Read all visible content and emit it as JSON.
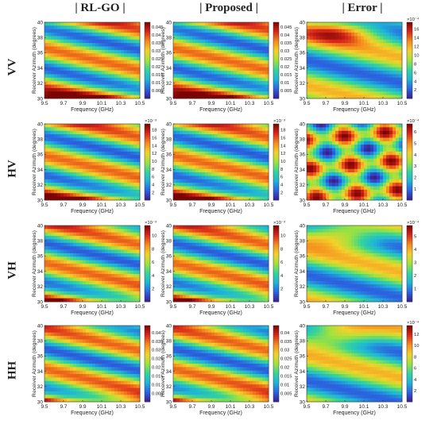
{
  "columns": [
    "| RL-GO |",
    "| Proposed |",
    "| Error |"
  ],
  "rows": [
    "VV",
    "HV",
    "VH",
    "HH"
  ],
  "chart_data": {
    "type": "heatmap",
    "xlabel": "Frequency (GHz)",
    "ylabel": "Receiver Azimuth (degrees)",
    "xticks": [
      "9.5",
      "9.7",
      "9.9",
      "10.1",
      "10.3",
      "10.5"
    ],
    "xlim": [
      9.5,
      10.5
    ],
    "yticks": [
      "30",
      "32",
      "34",
      "36",
      "38",
      "40"
    ],
    "ylim": [
      30,
      40
    ],
    "colormap": [
      "#3b1d8f",
      "#2b63e0",
      "#1fb5d8",
      "#35d49a",
      "#a2e23c",
      "#f3d12c",
      "#f58a1c",
      "#d8261b",
      "#7a0403"
    ],
    "panels": [
      {
        "row": "VV",
        "col": "| RL-GO |",
        "exp": "",
        "cb_ticks": [
          "0.045",
          "0.04",
          "0.035",
          "0.03",
          "0.025",
          "0.02",
          "0.015",
          "0.01",
          "0.005"
        ],
        "cmin": 0,
        "cmax": 0.048
      },
      {
        "row": "VV",
        "col": "| Proposed |",
        "exp": "",
        "cb_ticks": [
          "0.045",
          "0.04",
          "0.035",
          "0.03",
          "0.025",
          "0.02",
          "0.015",
          "0.01",
          "0.005"
        ],
        "cmin": 0,
        "cmax": 0.048
      },
      {
        "row": "VV",
        "col": "| Error |",
        "exp": "×10⁻⁴",
        "cb_ticks": [
          "16",
          "14",
          "12",
          "10",
          "8",
          "6",
          "4",
          "2"
        ],
        "cmin": 0,
        "cmax": 17.5
      },
      {
        "row": "HV",
        "col": "| RL-GO |",
        "exp": "×10⁻³",
        "cb_ticks": [
          "18",
          "16",
          "14",
          "12",
          "10",
          "8",
          "6",
          "4",
          "2"
        ],
        "cmin": 0,
        "cmax": 19.5
      },
      {
        "row": "HV",
        "col": "| Proposed |",
        "exp": "×10⁻³",
        "cb_ticks": [
          "18",
          "16",
          "14",
          "12",
          "10",
          "8",
          "6",
          "4",
          "2"
        ],
        "cmin": 0,
        "cmax": 19.5
      },
      {
        "row": "HV",
        "col": "| Error |",
        "exp": "×10⁻⁴",
        "cb_ticks": [
          "6",
          "5",
          "4",
          "3",
          "2",
          "1"
        ],
        "cmin": 0,
        "cmax": 6.7
      },
      {
        "row": "VH",
        "col": "| RL-GO |",
        "exp": "×10⁻³",
        "cb_ticks": [
          "10",
          "8",
          "6",
          "4",
          "2"
        ],
        "cmin": 0,
        "cmax": 11.5
      },
      {
        "row": "VH",
        "col": "| Proposed |",
        "exp": "×10⁻³",
        "cb_ticks": [
          "10",
          "8",
          "6",
          "4",
          "2"
        ],
        "cmin": 0,
        "cmax": 11.5
      },
      {
        "row": "VH",
        "col": "| Error |",
        "exp": "×10⁻⁴",
        "cb_ticks": [
          "5",
          "4",
          "3",
          "2",
          "1"
        ],
        "cmin": 0,
        "cmax": 5.8
      },
      {
        "row": "HH",
        "col": "| RL-GO |",
        "exp": "",
        "cb_ticks": [
          "0.04",
          "0.035",
          "0.03",
          "0.025",
          "0.02",
          "0.015",
          "0.01",
          "0.005"
        ],
        "cmin": 0,
        "cmax": 0.044
      },
      {
        "row": "HH",
        "col": "| Proposed |",
        "exp": "",
        "cb_ticks": [
          "0.04",
          "0.035",
          "0.03",
          "0.025",
          "0.02",
          "0.015",
          "0.01",
          "0.005"
        ],
        "cmin": 0,
        "cmax": 0.044
      },
      {
        "row": "HH",
        "col": "| Error |",
        "exp": "×10⁻⁴",
        "cb_ticks": [
          "12",
          "10",
          "8",
          "6",
          "4",
          "2"
        ],
        "cmin": 0,
        "cmax": 13.5
      }
    ]
  }
}
